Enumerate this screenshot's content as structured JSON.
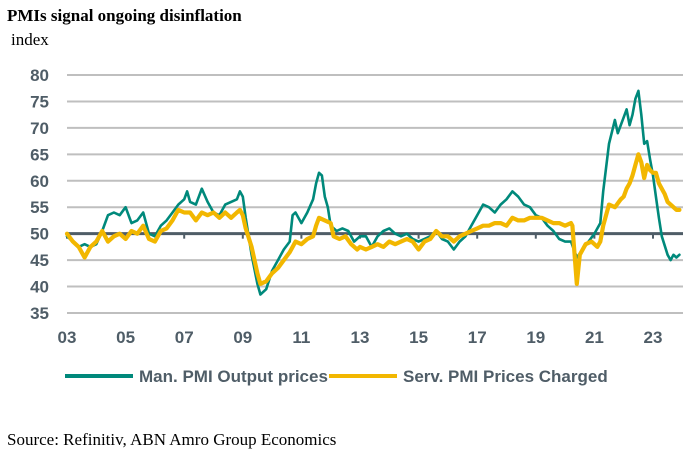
{
  "title": "PMIs signal ongoing disinflation",
  "unit_label": "index",
  "source": "Source: Refinitiv, ABN Amro Group Economics",
  "chart_data": {
    "type": "line",
    "title": "PMIs signal ongoing disinflation",
    "xlabel": "",
    "ylabel": "index",
    "xlim": [
      2003.0,
      2024.0
    ],
    "ylim": [
      35,
      80
    ],
    "grid": true,
    "reference_line": 50,
    "legend_position": "bottom",
    "x_ticks": [
      2003,
      2005,
      2007,
      2009,
      2011,
      2013,
      2015,
      2017,
      2019,
      2021,
      2023
    ],
    "x_tick_labels": [
      "03",
      "05",
      "07",
      "09",
      "11",
      "13",
      "15",
      "17",
      "19",
      "21",
      "23"
    ],
    "y_ticks": [
      35,
      40,
      45,
      50,
      55,
      60,
      65,
      70,
      75,
      80
    ],
    "y_tick_labels": [
      "35",
      "40",
      "45",
      "50",
      "55",
      "60",
      "65",
      "70",
      "75",
      "80"
    ],
    "series": [
      {
        "name": "Man. PMI Output prices",
        "color": "#00897b",
        "points": [
          [
            2003.0,
            49.5
          ],
          [
            2003.2,
            48.5
          ],
          [
            2003.4,
            47.5
          ],
          [
            2003.6,
            48.0
          ],
          [
            2003.8,
            47.5
          ],
          [
            2004.0,
            48.0
          ],
          [
            2004.2,
            50.5
          ],
          [
            2004.4,
            53.5
          ],
          [
            2004.6,
            54.0
          ],
          [
            2004.8,
            53.5
          ],
          [
            2005.0,
            55.0
          ],
          [
            2005.2,
            52.0
          ],
          [
            2005.4,
            52.5
          ],
          [
            2005.6,
            54.0
          ],
          [
            2005.8,
            50.0
          ],
          [
            2006.0,
            49.5
          ],
          [
            2006.2,
            51.5
          ],
          [
            2006.4,
            52.5
          ],
          [
            2006.6,
            54.0
          ],
          [
            2006.8,
            55.5
          ],
          [
            2007.0,
            56.5
          ],
          [
            2007.1,
            58.0
          ],
          [
            2007.2,
            56.0
          ],
          [
            2007.4,
            55.5
          ],
          [
            2007.6,
            58.5
          ],
          [
            2007.8,
            56.0
          ],
          [
            2008.0,
            54.0
          ],
          [
            2008.2,
            53.5
          ],
          [
            2008.4,
            55.5
          ],
          [
            2008.6,
            56.0
          ],
          [
            2008.8,
            56.5
          ],
          [
            2008.9,
            58.0
          ],
          [
            2009.0,
            57.0
          ],
          [
            2009.1,
            53.0
          ],
          [
            2009.3,
            46.0
          ],
          [
            2009.5,
            40.5
          ],
          [
            2009.6,
            38.5
          ],
          [
            2009.8,
            39.5
          ],
          [
            2010.0,
            43.0
          ],
          [
            2010.2,
            45.0
          ],
          [
            2010.4,
            47.0
          ],
          [
            2010.6,
            48.5
          ],
          [
            2010.7,
            53.5
          ],
          [
            2010.8,
            54.0
          ],
          [
            2011.0,
            52.0
          ],
          [
            2011.2,
            54.0
          ],
          [
            2011.4,
            56.5
          ],
          [
            2011.5,
            59.5
          ],
          [
            2011.6,
            61.5
          ],
          [
            2011.7,
            61.0
          ],
          [
            2011.8,
            57.0
          ],
          [
            2011.9,
            55.0
          ],
          [
            2012.0,
            51.5
          ],
          [
            2012.2,
            50.5
          ],
          [
            2012.4,
            51.0
          ],
          [
            2012.6,
            50.5
          ],
          [
            2012.8,
            48.5
          ],
          [
            2013.0,
            49.5
          ],
          [
            2013.2,
            49.5
          ],
          [
            2013.4,
            47.5
          ],
          [
            2013.6,
            49.5
          ],
          [
            2013.8,
            50.5
          ],
          [
            2014.0,
            51.0
          ],
          [
            2014.2,
            50.0
          ],
          [
            2014.4,
            49.5
          ],
          [
            2014.6,
            50.0
          ],
          [
            2014.8,
            49.0
          ],
          [
            2015.0,
            48.5
          ],
          [
            2015.2,
            49.0
          ],
          [
            2015.4,
            49.5
          ],
          [
            2015.6,
            50.5
          ],
          [
            2015.8,
            49.0
          ],
          [
            2016.0,
            48.5
          ],
          [
            2016.2,
            47.0
          ],
          [
            2016.4,
            48.5
          ],
          [
            2016.6,
            49.5
          ],
          [
            2016.8,
            51.5
          ],
          [
            2017.0,
            53.5
          ],
          [
            2017.2,
            55.5
          ],
          [
            2017.4,
            55.0
          ],
          [
            2017.6,
            54.0
          ],
          [
            2017.8,
            55.5
          ],
          [
            2018.0,
            56.5
          ],
          [
            2018.2,
            58.0
          ],
          [
            2018.4,
            57.0
          ],
          [
            2018.6,
            55.5
          ],
          [
            2018.8,
            55.0
          ],
          [
            2019.0,
            53.5
          ],
          [
            2019.2,
            53.0
          ],
          [
            2019.4,
            51.5
          ],
          [
            2019.6,
            50.5
          ],
          [
            2019.8,
            49.0
          ],
          [
            2020.0,
            48.5
          ],
          [
            2020.2,
            48.5
          ],
          [
            2020.4,
            45.5
          ],
          [
            2020.6,
            47.0
          ],
          [
            2020.8,
            48.5
          ],
          [
            2021.0,
            50.0
          ],
          [
            2021.2,
            52.0
          ],
          [
            2021.3,
            58.0
          ],
          [
            2021.5,
            67.0
          ],
          [
            2021.7,
            71.5
          ],
          [
            2021.8,
            69.0
          ],
          [
            2022.0,
            72.0
          ],
          [
            2022.1,
            73.5
          ],
          [
            2022.2,
            70.5
          ],
          [
            2022.3,
            72.5
          ],
          [
            2022.4,
            75.5
          ],
          [
            2022.5,
            77.0
          ],
          [
            2022.6,
            72.5
          ],
          [
            2022.7,
            67.0
          ],
          [
            2022.8,
            67.5
          ],
          [
            2022.9,
            64.0
          ],
          [
            2023.0,
            61.0
          ],
          [
            2023.1,
            57.0
          ],
          [
            2023.2,
            53.0
          ],
          [
            2023.3,
            49.5
          ],
          [
            2023.5,
            46.0
          ],
          [
            2023.6,
            45.0
          ],
          [
            2023.7,
            46.0
          ],
          [
            2023.8,
            45.5
          ],
          [
            2023.9,
            46.0
          ]
        ]
      },
      {
        "name": "Serv. PMI Prices Charged",
        "color": "#f2b700",
        "points": [
          [
            2003.0,
            50.0
          ],
          [
            2003.2,
            48.5
          ],
          [
            2003.4,
            47.5
          ],
          [
            2003.6,
            45.5
          ],
          [
            2003.8,
            47.5
          ],
          [
            2004.0,
            48.5
          ],
          [
            2004.2,
            50.5
          ],
          [
            2004.4,
            48.5
          ],
          [
            2004.6,
            49.5
          ],
          [
            2004.8,
            50.0
          ],
          [
            2005.0,
            49.0
          ],
          [
            2005.2,
            50.5
          ],
          [
            2005.4,
            50.0
          ],
          [
            2005.6,
            51.5
          ],
          [
            2005.8,
            49.0
          ],
          [
            2006.0,
            48.5
          ],
          [
            2006.2,
            50.5
          ],
          [
            2006.4,
            51.0
          ],
          [
            2006.6,
            52.5
          ],
          [
            2006.8,
            54.5
          ],
          [
            2007.0,
            54.0
          ],
          [
            2007.2,
            54.0
          ],
          [
            2007.4,
            52.5
          ],
          [
            2007.6,
            54.0
          ],
          [
            2007.8,
            53.5
          ],
          [
            2008.0,
            54.0
          ],
          [
            2008.2,
            53.0
          ],
          [
            2008.4,
            54.0
          ],
          [
            2008.6,
            53.0
          ],
          [
            2008.8,
            54.0
          ],
          [
            2008.9,
            54.5
          ],
          [
            2009.0,
            53.5
          ],
          [
            2009.1,
            51.0
          ],
          [
            2009.3,
            47.5
          ],
          [
            2009.5,
            42.5
          ],
          [
            2009.6,
            40.5
          ],
          [
            2009.8,
            41.0
          ],
          [
            2010.0,
            42.5
          ],
          [
            2010.2,
            43.5
          ],
          [
            2010.4,
            45.0
          ],
          [
            2010.6,
            46.5
          ],
          [
            2010.8,
            48.5
          ],
          [
            2011.0,
            48.0
          ],
          [
            2011.2,
            49.0
          ],
          [
            2011.4,
            49.5
          ],
          [
            2011.5,
            51.5
          ],
          [
            2011.6,
            53.0
          ],
          [
            2011.8,
            52.5
          ],
          [
            2012.0,
            52.0
          ],
          [
            2012.1,
            49.5
          ],
          [
            2012.3,
            49.0
          ],
          [
            2012.5,
            49.5
          ],
          [
            2012.7,
            48.0
          ],
          [
            2012.9,
            47.0
          ],
          [
            2013.0,
            47.5
          ],
          [
            2013.2,
            47.0
          ],
          [
            2013.4,
            47.5
          ],
          [
            2013.6,
            48.0
          ],
          [
            2013.8,
            47.5
          ],
          [
            2014.0,
            48.5
          ],
          [
            2014.2,
            48.0
          ],
          [
            2014.4,
            48.5
          ],
          [
            2014.6,
            49.0
          ],
          [
            2014.8,
            48.5
          ],
          [
            2015.0,
            47.0
          ],
          [
            2015.2,
            48.5
          ],
          [
            2015.4,
            49.0
          ],
          [
            2015.6,
            50.5
          ],
          [
            2015.8,
            49.5
          ],
          [
            2016.0,
            49.5
          ],
          [
            2016.2,
            48.5
          ],
          [
            2016.4,
            49.5
          ],
          [
            2016.6,
            50.0
          ],
          [
            2016.8,
            50.5
          ],
          [
            2017.0,
            51.0
          ],
          [
            2017.2,
            51.5
          ],
          [
            2017.4,
            51.5
          ],
          [
            2017.6,
            52.0
          ],
          [
            2017.8,
            52.0
          ],
          [
            2018.0,
            51.5
          ],
          [
            2018.2,
            53.0
          ],
          [
            2018.4,
            52.5
          ],
          [
            2018.6,
            52.5
          ],
          [
            2018.8,
            53.0
          ],
          [
            2019.0,
            53.0
          ],
          [
            2019.2,
            53.0
          ],
          [
            2019.4,
            52.5
          ],
          [
            2019.6,
            52.0
          ],
          [
            2019.8,
            52.0
          ],
          [
            2020.0,
            51.5
          ],
          [
            2020.2,
            52.0
          ],
          [
            2020.25,
            51.5
          ],
          [
            2020.4,
            40.5
          ],
          [
            2020.5,
            46.0
          ],
          [
            2020.7,
            48.0
          ],
          [
            2020.9,
            48.5
          ],
          [
            2021.0,
            48.0
          ],
          [
            2021.1,
            47.5
          ],
          [
            2021.2,
            48.5
          ],
          [
            2021.3,
            51.5
          ],
          [
            2021.5,
            55.5
          ],
          [
            2021.7,
            55.0
          ],
          [
            2021.9,
            56.5
          ],
          [
            2022.0,
            57.0
          ],
          [
            2022.1,
            58.5
          ],
          [
            2022.2,
            59.5
          ],
          [
            2022.3,
            61.0
          ],
          [
            2022.4,
            63.0
          ],
          [
            2022.5,
            65.0
          ],
          [
            2022.6,
            63.5
          ],
          [
            2022.7,
            60.5
          ],
          [
            2022.8,
            63.0
          ],
          [
            2022.9,
            62.0
          ],
          [
            2023.0,
            61.5
          ],
          [
            2023.1,
            61.5
          ],
          [
            2023.2,
            59.5
          ],
          [
            2023.3,
            58.5
          ],
          [
            2023.4,
            57.5
          ],
          [
            2023.5,
            56.0
          ],
          [
            2023.6,
            55.5
          ],
          [
            2023.7,
            55.0
          ],
          [
            2023.8,
            54.5
          ],
          [
            2023.9,
            54.5
          ]
        ]
      }
    ]
  }
}
